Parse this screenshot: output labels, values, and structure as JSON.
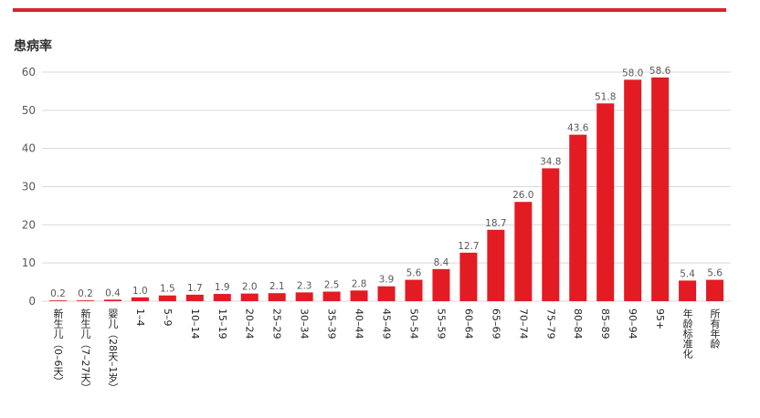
{
  "colors": {
    "bar": "#e31b23",
    "accent_bar": "#d7242c",
    "grid": "#d9d9d9"
  },
  "chart_data": {
    "type": "bar",
    "ylabel": "患病率",
    "ylim": [
      0,
      60
    ],
    "yticks": [
      0,
      10,
      20,
      30,
      40,
      50,
      60
    ],
    "grid": true,
    "categories": [
      "新生儿（0–6天）",
      "新生儿（7–27天）",
      "婴儿（28天–1岁）",
      "1–4",
      "5–9",
      "10–14",
      "15–19",
      "20–24",
      "25–29",
      "30–34",
      "35–39",
      "40–44",
      "45–49",
      "50–54",
      "55–59",
      "60–64",
      "65–69",
      "70–74",
      "75–79",
      "80–84",
      "85–89",
      "90–94",
      "95+",
      "年龄标准化",
      "所有年龄"
    ],
    "values": [
      0.2,
      0.2,
      0.4,
      1.0,
      1.5,
      1.7,
      1.9,
      2.0,
      2.1,
      2.3,
      2.5,
      2.8,
      3.9,
      5.6,
      8.4,
      12.7,
      18.7,
      26.0,
      34.8,
      43.6,
      51.8,
      58.0,
      58.6,
      5.4,
      5.6
    ],
    "value_labels": [
      "0.2",
      "0.2",
      "0.4",
      "1.0",
      "1.5",
      "1.7",
      "1.9",
      "2.0",
      "2.1",
      "2.3",
      "2.5",
      "2.8",
      "3.9",
      "5.6",
      "8.4",
      "12.7",
      "18.7",
      "26.0",
      "34.8",
      "43.6",
      "51.8",
      "58.0",
      "58.6",
      "5.4",
      "5.6"
    ]
  }
}
